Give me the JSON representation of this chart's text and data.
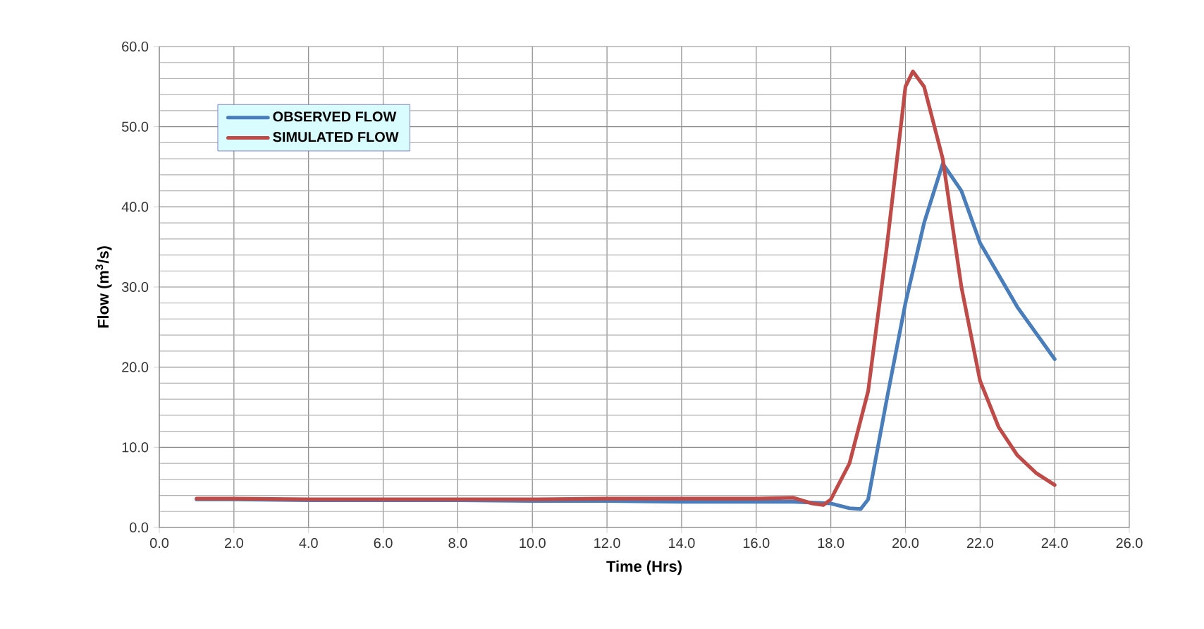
{
  "chart_data": {
    "type": "line",
    "xlabel": "Time (Hrs)",
    "ylabel": "Flow (m$^{3}$/s)",
    "series": [
      {
        "name": "OBSERVED FLOW",
        "color": "#4a7ebb",
        "x": [
          1,
          2,
          4,
          6,
          8,
          10,
          12,
          14,
          16,
          17,
          18,
          18.5,
          18.8,
          19,
          19.5,
          20,
          20.5,
          21,
          21.5,
          22,
          23,
          24
        ],
        "values": [
          3.5,
          3.5,
          3.4,
          3.4,
          3.4,
          3.3,
          3.3,
          3.2,
          3.2,
          3.2,
          3.0,
          2.4,
          2.3,
          3.5,
          16,
          28,
          38,
          45.4,
          42,
          35.5,
          27.5,
          21.0
        ]
      },
      {
        "name": "SIMULATED FLOW",
        "color": "#be4b48",
        "x": [
          1,
          2,
          4,
          6,
          8,
          10,
          12,
          14,
          16,
          17,
          17.5,
          17.8,
          18,
          18.5,
          19,
          19.5,
          20,
          20.2,
          20.5,
          21,
          21.5,
          22,
          22.5,
          23,
          23.5,
          24
        ],
        "values": [
          3.6,
          3.6,
          3.5,
          3.5,
          3.5,
          3.5,
          3.6,
          3.6,
          3.6,
          3.7,
          3.0,
          2.8,
          3.5,
          8,
          17,
          35,
          55,
          56.9,
          55,
          46,
          30,
          18.3,
          12.5,
          9,
          6.8,
          5.3
        ]
      }
    ],
    "xlim": [
      0,
      26
    ],
    "xticks": [
      {
        "value": 0,
        "label": "0.0"
      },
      {
        "value": 2,
        "label": "2.0"
      },
      {
        "value": 4,
        "label": "4.0"
      },
      {
        "value": 6,
        "label": "6.0"
      },
      {
        "value": 8,
        "label": "8.0"
      },
      {
        "value": 10,
        "label": "10.0"
      },
      {
        "value": 12,
        "label": "12.0"
      },
      {
        "value": 14,
        "label": "14.0"
      },
      {
        "value": 16,
        "label": "16.0"
      },
      {
        "value": 18,
        "label": "18.0"
      },
      {
        "value": 20,
        "label": "20.0"
      },
      {
        "value": 22,
        "label": "22.0"
      },
      {
        "value": 24,
        "label": "24.0"
      },
      {
        "value": 26,
        "label": "26.0"
      }
    ],
    "ylim": [
      0,
      60
    ],
    "yticks": [
      {
        "value": 0,
        "label": "0.0"
      },
      {
        "value": 10,
        "label": "10.0"
      },
      {
        "value": 20,
        "label": "20.0"
      },
      {
        "value": 30,
        "label": "30.0"
      },
      {
        "value": 40,
        "label": "40.0"
      },
      {
        "value": 50,
        "label": "50.0"
      },
      {
        "value": 60,
        "label": "60.0"
      }
    ],
    "grid": true,
    "legend": "top left",
    "marker": "none",
    "line_style": "solid"
  }
}
